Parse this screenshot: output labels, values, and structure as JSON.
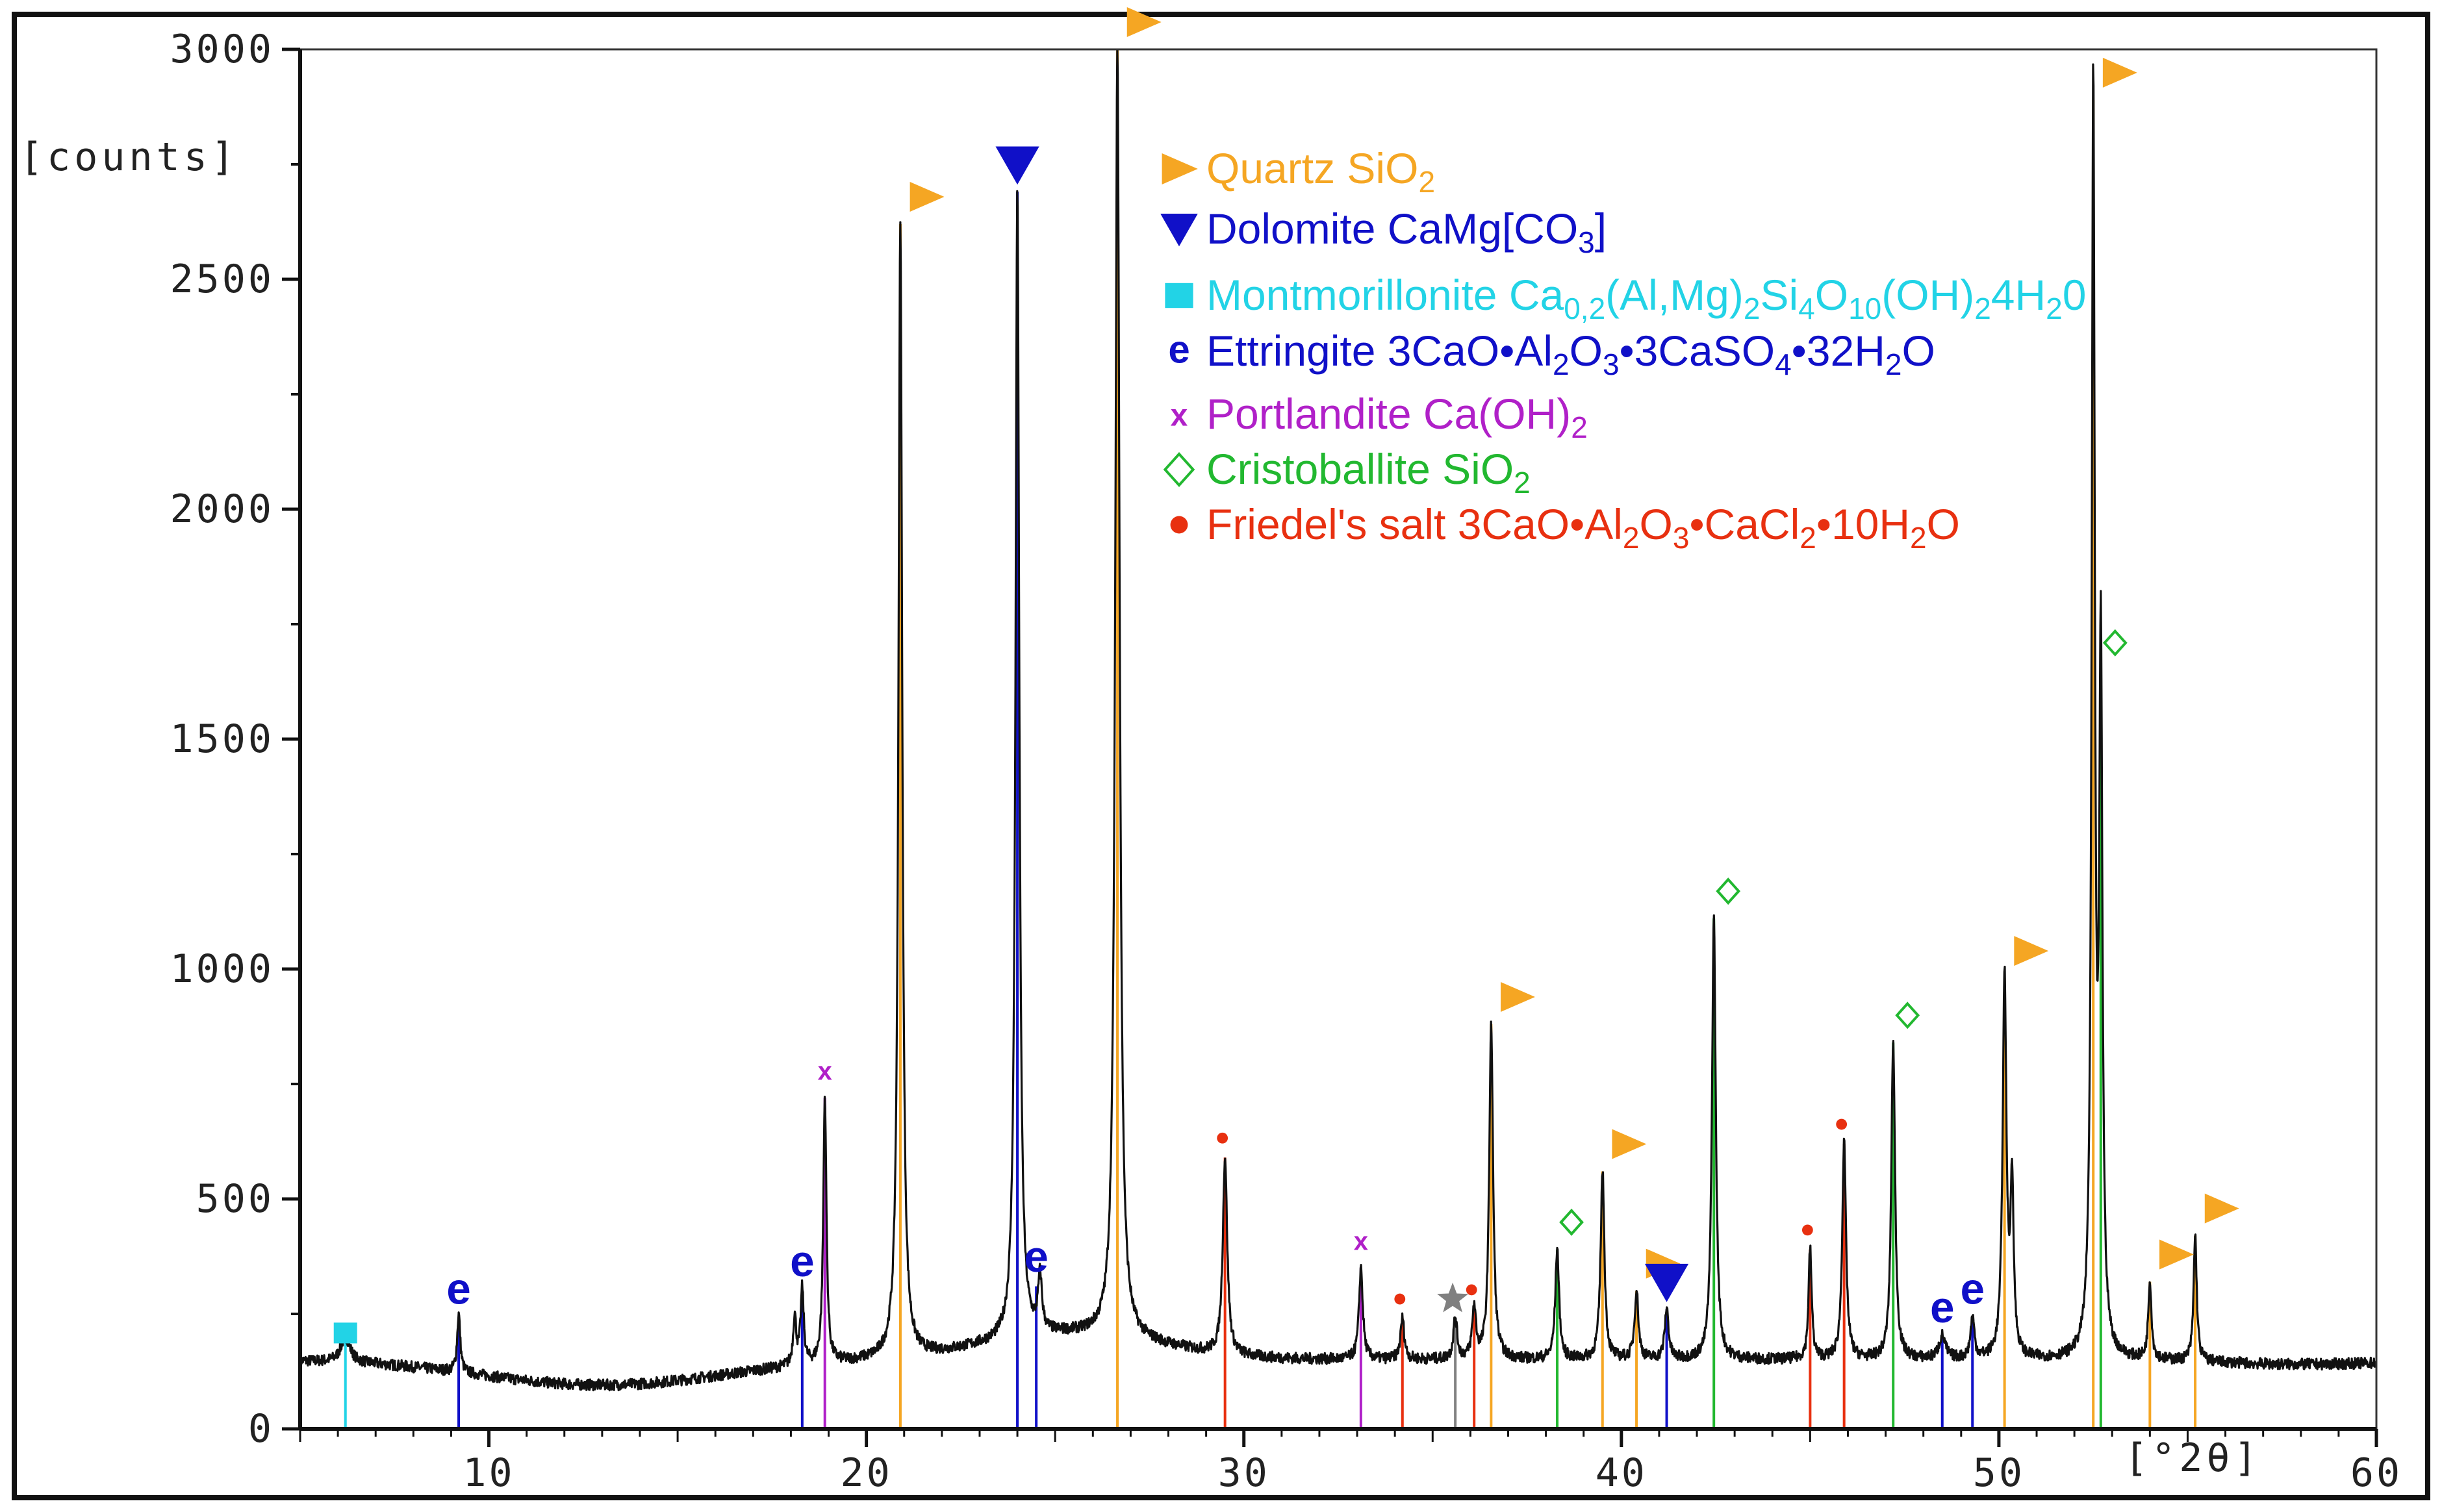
{
  "chart_data": {
    "type": "line",
    "title": "",
    "xlabel": "[°2θ]",
    "ylabel": "[counts]",
    "xlim": [
      5,
      60
    ],
    "ylim": [
      0,
      3000
    ],
    "x_ticks": [
      10,
      20,
      30,
      40,
      50,
      60
    ],
    "x_tick_labels": [
      "10",
      "20",
      "30",
      "40",
      "50",
      "60"
    ],
    "y_ticks": [
      0,
      500,
      1000,
      1500,
      2000,
      2500,
      3000
    ],
    "y_tick_labels": [
      "0",
      "500",
      "1000",
      "1500",
      "2000",
      "2500",
      "3000"
    ],
    "grid": false,
    "legend_position": "top-center",
    "colors": {
      "quartz": "#f5a623",
      "dolomite": "#1010c8",
      "montmorillonite": "#22d3e6",
      "ettringite": "#1010c8",
      "portlandite": "#b020c8",
      "cristoballite": "#22b830",
      "friedel": "#e83010",
      "unknown": "#808080",
      "pattern": "#111111"
    },
    "legend": [
      {
        "phase": "quartz",
        "symbol": "triangle-right",
        "parts": [
          [
            "Quartz SiO",
            "n"
          ],
          [
            "2",
            "sub"
          ]
        ]
      },
      {
        "phase": "dolomite",
        "symbol": "triangle-down",
        "parts": [
          [
            "Dolomite CaMg[CO",
            "n"
          ],
          [
            "3",
            "sub"
          ],
          [
            "]",
            "n"
          ]
        ]
      },
      {
        "phase": "montmorillonite",
        "symbol": "square",
        "parts": [
          [
            "Montmorillonite Ca",
            "n"
          ],
          [
            "0,2",
            "sub"
          ],
          [
            "(Al,Mg)",
            "n"
          ],
          [
            "2",
            "sub"
          ],
          [
            "Si",
            "n"
          ],
          [
            "4",
            "sub"
          ],
          [
            "O",
            "n"
          ],
          [
            "10",
            "sub"
          ],
          [
            "(OH)",
            "n"
          ],
          [
            "2",
            "sub"
          ],
          [
            "4H",
            "n"
          ],
          [
            "2",
            "sub"
          ],
          [
            "0",
            "n"
          ]
        ]
      },
      {
        "phase": "ettringite",
        "symbol": "e",
        "parts": [
          [
            "Ettringite 3CaO•Al",
            "n"
          ],
          [
            "2",
            "sub"
          ],
          [
            "O",
            "n"
          ],
          [
            "3",
            "sub"
          ],
          [
            "•3CaSO",
            "n"
          ],
          [
            "4",
            "sub"
          ],
          [
            "•32H",
            "n"
          ],
          [
            "2",
            "sub"
          ],
          [
            "O",
            "n"
          ]
        ]
      },
      {
        "phase": "portlandite",
        "symbol": "x",
        "parts": [
          [
            "Portlandite Ca(OH)",
            "n"
          ],
          [
            "2",
            "sub"
          ]
        ]
      },
      {
        "phase": "cristoballite",
        "symbol": "diamond",
        "parts": [
          [
            "Cristoballite SiO",
            "n"
          ],
          [
            "2",
            "sub"
          ]
        ]
      },
      {
        "phase": "friedel",
        "symbol": "dot",
        "parts": [
          [
            "Friedel's salt 3CaO•Al",
            "n"
          ],
          [
            "2",
            "sub"
          ],
          [
            "O",
            "n"
          ],
          [
            "3",
            "sub"
          ],
          [
            "•CaCl",
            "n"
          ],
          [
            "2",
            "sub"
          ],
          [
            "•10H",
            "n"
          ],
          [
            "2",
            "sub"
          ],
          [
            "O",
            "n"
          ]
        ]
      }
    ],
    "series": [
      {
        "peaks": [
          {
            "x": 6.2,
            "y": 200,
            "w": 0.15
          },
          {
            "x": 9.2,
            "y": 250,
            "w": 0.05
          },
          {
            "x": 18.1,
            "y": 240,
            "w": 0.05
          },
          {
            "x": 18.3,
            "y": 300,
            "w": 0.05
          },
          {
            "x": 18.9,
            "y": 720,
            "w": 0.05
          },
          {
            "x": 20.9,
            "y": 2620,
            "w": 0.06
          },
          {
            "x": 23.2,
            "y": 180,
            "w": 0.15
          },
          {
            "x": 24.0,
            "y": 2700,
            "w": 0.06
          },
          {
            "x": 24.6,
            "y": 320,
            "w": 0.06
          },
          {
            "x": 26.65,
            "y": 3000,
            "w": 0.07
          },
          {
            "x": 29.5,
            "y": 590,
            "w": 0.07
          },
          {
            "x": 33.1,
            "y": 350,
            "w": 0.06
          },
          {
            "x": 34.2,
            "y": 240,
            "w": 0.06
          },
          {
            "x": 35.6,
            "y": 240,
            "w": 0.06
          },
          {
            "x": 36.1,
            "y": 260,
            "w": 0.06
          },
          {
            "x": 36.55,
            "y": 880,
            "w": 0.06
          },
          {
            "x": 38.3,
            "y": 390,
            "w": 0.06
          },
          {
            "x": 39.5,
            "y": 560,
            "w": 0.06
          },
          {
            "x": 40.4,
            "y": 300,
            "w": 0.06
          },
          {
            "x": 41.2,
            "y": 260,
            "w": 0.06
          },
          {
            "x": 42.45,
            "y": 1110,
            "w": 0.06
          },
          {
            "x": 45.0,
            "y": 390,
            "w": 0.05
          },
          {
            "x": 45.9,
            "y": 620,
            "w": 0.06
          },
          {
            "x": 47.2,
            "y": 840,
            "w": 0.06
          },
          {
            "x": 48.5,
            "y": 200,
            "w": 0.1
          },
          {
            "x": 49.3,
            "y": 240,
            "w": 0.06
          },
          {
            "x": 50.15,
            "y": 980,
            "w": 0.06
          },
          {
            "x": 50.35,
            "y": 520,
            "w": 0.05
          },
          {
            "x": 52.5,
            "y": 2890,
            "w": 0.05
          },
          {
            "x": 52.7,
            "y": 1650,
            "w": 0.05
          },
          {
            "x": 54.0,
            "y": 320,
            "w": 0.05
          },
          {
            "x": 55.2,
            "y": 420,
            "w": 0.05
          }
        ]
      }
    ],
    "phase_lines": [
      {
        "phase": "montmorillonite",
        "x": 6.2,
        "y": 200,
        "symbol": "square"
      },
      {
        "phase": "ettringite",
        "x": 9.2,
        "y": 240,
        "symbol": "e"
      },
      {
        "phase": "ettringite",
        "x": 18.3,
        "y": 300,
        "symbol": "e"
      },
      {
        "phase": "portlandite",
        "x": 18.9,
        "y": 720,
        "symbol": "x"
      },
      {
        "phase": "quartz",
        "x": 20.9,
        "y": 2620,
        "symbol": "triangle-right"
      },
      {
        "phase": "dolomite",
        "x": 24.0,
        "y": 2690,
        "symbol": "triangle-down"
      },
      {
        "phase": "ettringite",
        "x": 24.5,
        "y": 310,
        "symbol": "e"
      },
      {
        "phase": "quartz",
        "x": 26.65,
        "y": 3000,
        "symbol": "triangle-right"
      },
      {
        "phase": "friedel",
        "x": 29.5,
        "y": 590,
        "symbol": "dot"
      },
      {
        "phase": "portlandite",
        "x": 33.1,
        "y": 350,
        "symbol": "x"
      },
      {
        "phase": "friedel",
        "x": 34.2,
        "y": 240,
        "symbol": "dot"
      },
      {
        "phase": "unknown",
        "x": 35.6,
        "y": 240,
        "symbol": "star"
      },
      {
        "phase": "friedel",
        "x": 36.1,
        "y": 260,
        "symbol": "dot"
      },
      {
        "phase": "quartz",
        "x": 36.55,
        "y": 880,
        "symbol": "triangle-right"
      },
      {
        "phase": "cristoballite",
        "x": 38.3,
        "y": 390,
        "symbol": "diamond"
      },
      {
        "phase": "quartz",
        "x": 39.5,
        "y": 560,
        "symbol": "triangle-right"
      },
      {
        "phase": "quartz",
        "x": 40.4,
        "y": 300,
        "symbol": "triangle-right"
      },
      {
        "phase": "dolomite",
        "x": 41.2,
        "y": 260,
        "symbol": "triangle-down"
      },
      {
        "phase": "cristoballite",
        "x": 42.45,
        "y": 1110,
        "symbol": "diamond"
      },
      {
        "phase": "friedel",
        "x": 45.0,
        "y": 390,
        "symbol": "dot"
      },
      {
        "phase": "friedel",
        "x": 45.9,
        "y": 620,
        "symbol": "dot"
      },
      {
        "phase": "cristoballite",
        "x": 47.2,
        "y": 840,
        "symbol": "diamond"
      },
      {
        "phase": "ettringite",
        "x": 48.5,
        "y": 200,
        "symbol": "e"
      },
      {
        "phase": "ettringite",
        "x": 49.3,
        "y": 240,
        "symbol": "e"
      },
      {
        "phase": "quartz",
        "x": 50.15,
        "y": 980,
        "symbol": "triangle-right"
      },
      {
        "phase": "quartz",
        "x": 52.5,
        "y": 2890,
        "symbol": "triangle-right"
      },
      {
        "phase": "cristoballite",
        "x": 52.7,
        "y": 1650,
        "symbol": "diamond"
      },
      {
        "phase": "quartz",
        "x": 54.0,
        "y": 320,
        "symbol": "triangle-right"
      },
      {
        "phase": "quartz",
        "x": 55.2,
        "y": 420,
        "symbol": "triangle-right"
      }
    ]
  }
}
